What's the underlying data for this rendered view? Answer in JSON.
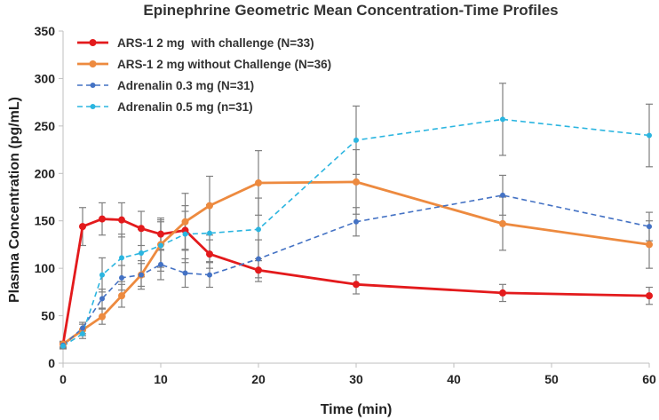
{
  "chart_data": {
    "type": "line",
    "title": "Epinephrine Geometric Mean Concentration-Time Profiles",
    "xlabel": "Time (min)",
    "ylabel": "Plasma Concentration (pg/mL)",
    "xlim": [
      0,
      60
    ],
    "ylim": [
      0,
      350
    ],
    "xticks": [
      0,
      10,
      20,
      30,
      40,
      50,
      60
    ],
    "yticks": [
      0,
      50,
      100,
      150,
      200,
      250,
      300,
      350
    ],
    "legend_position": "top-left",
    "colors": {
      "red": "#e31a1c",
      "orange": "#ed8a3f",
      "blue": "#4472c4",
      "cyan": "#2bb5e0",
      "error_bar": "#7f7f7f",
      "axis": "#bfbfbf"
    },
    "series": [
      {
        "name": "ARS-1 2 mg  with challenge (N=33)",
        "color": "#e31a1c",
        "style": "solid",
        "x": [
          0,
          2,
          4,
          6,
          8,
          10,
          12.5,
          15,
          20,
          30,
          45,
          60
        ],
        "values": [
          20,
          144,
          152,
          151,
          142,
          136,
          140,
          115,
          98,
          83,
          74,
          71
        ],
        "error": [
          3,
          20,
          17,
          18,
          18,
          17,
          20,
          15,
          12,
          10,
          9,
          9
        ]
      },
      {
        "name": "ARS-1 2 mg without Challenge (N=36)",
        "color": "#ed8a3f",
        "style": "solid",
        "x": [
          0,
          2,
          4,
          6,
          8,
          10,
          12.5,
          15,
          20,
          30,
          45,
          60
        ],
        "values": [
          20,
          35,
          49,
          71,
          93,
          125,
          149,
          166,
          190,
          191,
          147,
          125
        ],
        "error": [
          3,
          6,
          8,
          12,
          15,
          24,
          30,
          31,
          34,
          34,
          28,
          25
        ]
      },
      {
        "name": "Adrenalin 0.3 mg (N=31)",
        "color": "#4472c4",
        "style": "dashed",
        "x": [
          0,
          2,
          4,
          6,
          8,
          10,
          12.5,
          15,
          20,
          30,
          45,
          60
        ],
        "values": [
          19,
          37,
          68,
          90,
          93,
          104,
          95,
          93,
          110,
          149,
          177,
          144
        ],
        "error": [
          3,
          6,
          10,
          13,
          12,
          16,
          15,
          13,
          20,
          15,
          21,
          15
        ]
      },
      {
        "name": "Adrenalin 0.5 mg (n=31)",
        "color": "#2bb5e0",
        "style": "dashed",
        "x": [
          0,
          2,
          4,
          6,
          8,
          10,
          12.5,
          15,
          20,
          30,
          45,
          60
        ],
        "values": [
          18,
          31,
          93,
          111,
          116,
          124,
          136,
          137,
          141,
          235,
          257,
          240
        ],
        "error": [
          3,
          5,
          18,
          25,
          25,
          27,
          30,
          30,
          33,
          36,
          38,
          33
        ]
      }
    ]
  }
}
